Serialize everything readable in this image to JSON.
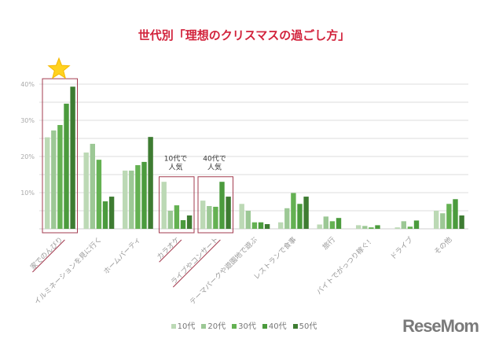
{
  "chart_data": {
    "type": "bar",
    "title": "世代別「理想のクリスマスの過ごし方」",
    "categories": [
      "家でのんびり",
      "イルミネーションを見に行く",
      "ホームパーティ",
      "カラオケ",
      "ライブやコンサート",
      "テーマパークや遊園地で遊ぶ",
      "レストランで食事",
      "旅行",
      "バイトでがっつり稼ぐ！",
      "ドライブ",
      "その他"
    ],
    "series": [
      {
        "name": "10代",
        "color": "#bcd9b5",
        "values": [
          25.3,
          21.1,
          16.1,
          13.0,
          7.8,
          6.9,
          1.8,
          1.2,
          1.0,
          0.4,
          5.0
        ]
      },
      {
        "name": "20代",
        "color": "#9cc895",
        "values": [
          27.2,
          23.5,
          16.1,
          5.0,
          6.3,
          5.0,
          5.7,
          3.4,
          0.8,
          2.1,
          4.3
        ]
      },
      {
        "name": "30代",
        "color": "#64b152",
        "values": [
          28.7,
          19.1,
          17.6,
          6.5,
          6.1,
          1.8,
          9.9,
          2.1,
          0.4,
          0.6,
          6.9
        ]
      },
      {
        "name": "40代",
        "color": "#4b9b3d",
        "values": [
          34.6,
          7.6,
          18.5,
          2.4,
          13.0,
          1.8,
          6.9,
          3.0,
          1.0,
          2.3,
          8.2
        ]
      },
      {
        "name": "50代",
        "color": "#3e7c32",
        "values": [
          39.3,
          8.9,
          25.4,
          3.7,
          8.9,
          1.3,
          8.9,
          0,
          0,
          0,
          3.7
        ]
      }
    ],
    "yticks": [
      "10%",
      "20%",
      "30%",
      "40%"
    ],
    "ytick_values": [
      10,
      20,
      30,
      40
    ],
    "ylim": [
      0,
      42
    ],
    "grid": true,
    "legend_position": "bottom",
    "highlighted_categories": [
      0,
      3,
      4
    ],
    "highlight_color": "#a33b4f",
    "annotations": [
      {
        "category": 3,
        "text_line1": "10代で",
        "text_line2": "人気"
      },
      {
        "category": 4,
        "text_line1": "40代で",
        "text_line2": "人気"
      }
    ],
    "star_category": 0
  },
  "logo": "ReseMom"
}
